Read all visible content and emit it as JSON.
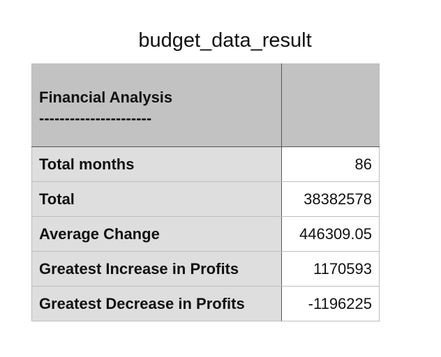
{
  "document": {
    "title": "budget_data_result"
  },
  "table": {
    "header": {
      "col1_line1": "Financial Analysis",
      "col1_line2": "----------------------",
      "col2": ""
    },
    "rows": [
      {
        "label": "Total months",
        "value": "86"
      },
      {
        "label": "Total",
        "value": "38382578"
      },
      {
        "label": "Average Change",
        "value": "446309.05"
      },
      {
        "label": "Greatest Increase in Profits",
        "value": "1170593"
      },
      {
        "label": "Greatest Decrease in Profits",
        "value": "-1196225"
      }
    ]
  }
}
